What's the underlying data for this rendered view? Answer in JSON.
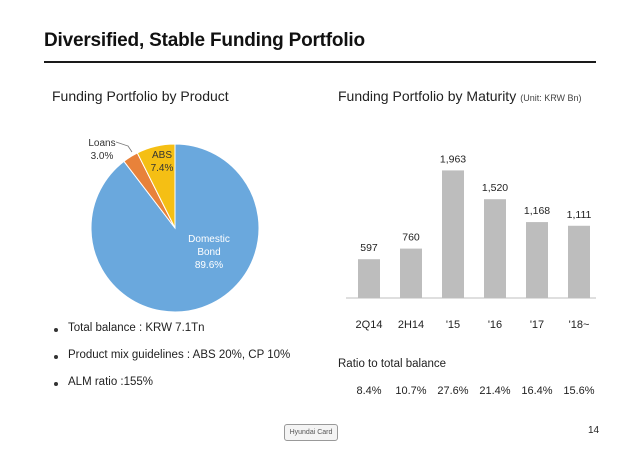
{
  "title": "Diversified, Stable Funding Portfolio",
  "left_heading": "Funding Portfolio by Product",
  "right_heading": "Funding Portfolio by Maturity",
  "unit_note": "(Unit: KRW Bn)",
  "bullets": [
    "Total balance : KRW 7.1Tn",
    "Product mix guidelines : ABS 20%, CP 10%",
    "ALM ratio :155%"
  ],
  "ratio_label": "Ratio to total balance",
  "logo_text": "Hyundai Card",
  "page_number": "14",
  "chart_data": [
    {
      "type": "pie",
      "slices": [
        {
          "label": "Domestic\nBond",
          "label_lines": [
            "Domestic",
            "Bond"
          ],
          "value": 89.6,
          "value_label": "89.6%",
          "color": "#6aa8dd",
          "text_color": "#ffffff"
        },
        {
          "label": "Loans",
          "label_lines": [
            "Loans"
          ],
          "value": 3.0,
          "value_label": "3.0%",
          "color": "#e8823a",
          "text_color": "#333333"
        },
        {
          "label": "ABS",
          "label_lines": [
            "ABS"
          ],
          "value": 7.4,
          "value_label": "7.4%",
          "color": "#f5bf14",
          "text_color": "#333333"
        }
      ]
    },
    {
      "type": "bar",
      "categories": [
        "2Q14",
        "2H14",
        "'15",
        "'16",
        "'17",
        "'18~"
      ],
      "values": [
        597,
        760,
        1963,
        1520,
        1168,
        1111
      ],
      "value_labels": [
        "597",
        "760",
        "1,963",
        "1,520",
        "1,168",
        "1,111"
      ],
      "ratios": [
        "8.4%",
        "10.7%",
        "27.6%",
        "21.4%",
        "16.4%",
        "15.6%"
      ],
      "bar_color": "#bdbdbd",
      "ylim": [
        0,
        2000
      ]
    }
  ]
}
